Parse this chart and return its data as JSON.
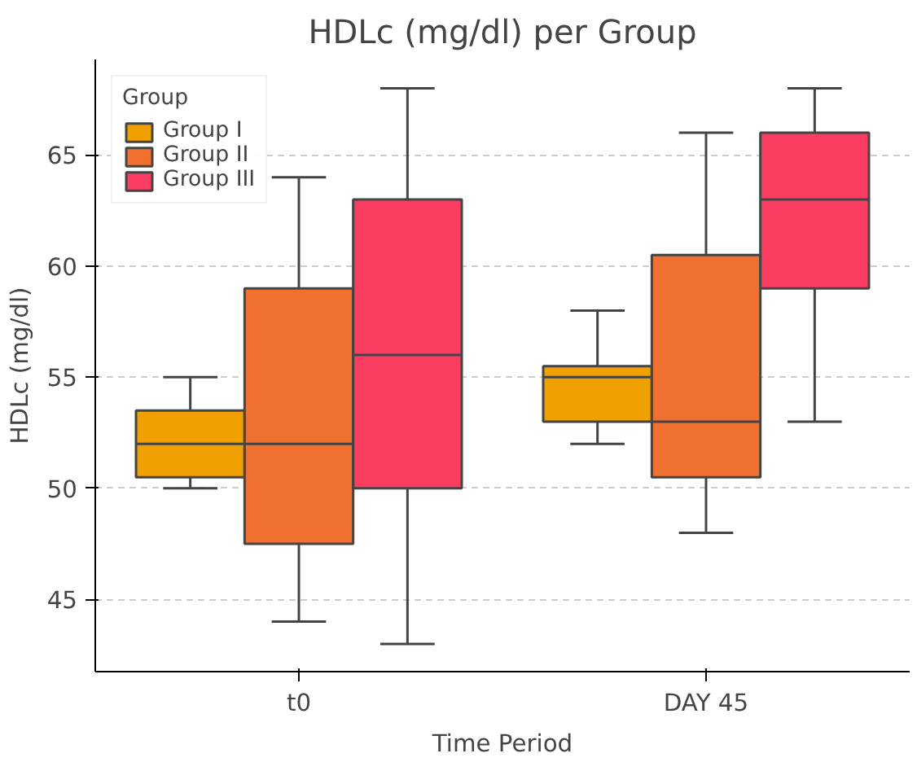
{
  "chart_data": {
    "type": "box",
    "title": "HDLc (mg/dl) per Group",
    "xlabel": "Time Period",
    "ylabel": "HDLc (mg/dl)",
    "legend_title": "Group",
    "categories": [
      "t0",
      "DAY 45"
    ],
    "series": [
      {
        "name": "Group I",
        "color": "#f0a000",
        "boxes": [
          {
            "low": 50,
            "q1": 50.5,
            "median": 52,
            "q3": 53.5,
            "high": 55
          },
          {
            "low": 52,
            "q1": 53,
            "median": 55,
            "q3": 55.5,
            "high": 58
          }
        ]
      },
      {
        "name": "Group II",
        "color": "#f07030",
        "boxes": [
          {
            "low": 44,
            "q1": 47.5,
            "median": 52,
            "q3": 59,
            "high": 64
          },
          {
            "low": 48,
            "q1": 50.5,
            "median": 53,
            "q3": 60.5,
            "high": 66
          }
        ]
      },
      {
        "name": "Group III",
        "color": "#fc3d62",
        "boxes": [
          {
            "low": 43,
            "q1": 50,
            "median": 56,
            "q3": 63,
            "high": 68
          },
          {
            "low": 53,
            "q1": 59,
            "median": 63,
            "q3": 66,
            "high": 68
          }
        ]
      }
    ],
    "ylim": [
      41.75,
      69.3
    ],
    "yticks": [
      45,
      50,
      55,
      60,
      65
    ],
    "grid": "y",
    "legend": "top left"
  }
}
